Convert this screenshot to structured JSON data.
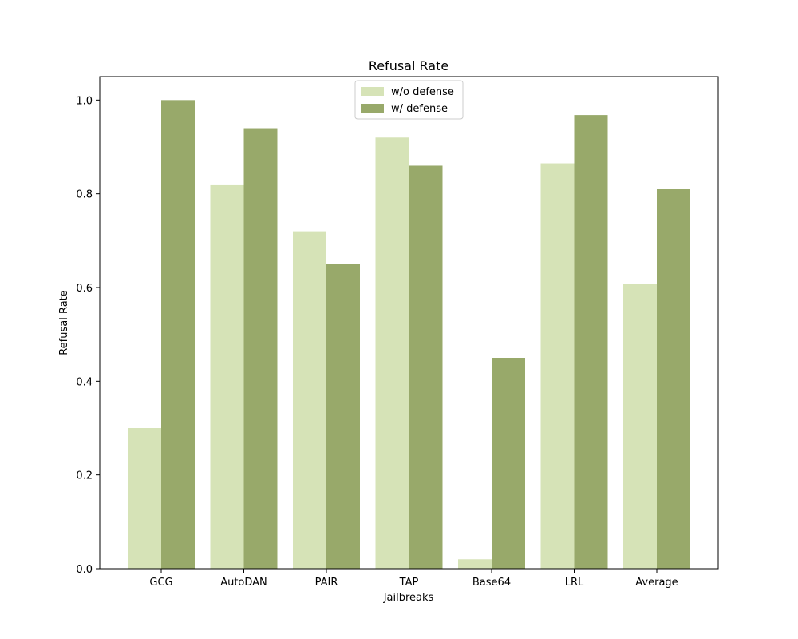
{
  "chart_data": {
    "type": "bar",
    "title": "Refusal Rate",
    "xlabel": "Jailbreaks",
    "ylabel": "Refusal Rate",
    "categories": [
      "GCG",
      "AutoDAN",
      "PAIR",
      "TAP",
      "Base64",
      "LRL",
      "Average"
    ],
    "series": [
      {
        "name": "w/o defense",
        "color": "#d6e3b7",
        "values": [
          0.3,
          0.82,
          0.72,
          0.92,
          0.02,
          0.865,
          0.607
        ]
      },
      {
        "name": "w/ defense",
        "color": "#98a96a",
        "values": [
          1.0,
          0.94,
          0.65,
          0.86,
          0.45,
          0.968,
          0.811
        ]
      }
    ],
    "ylim": [
      0,
      1.05
    ],
    "yticks": [
      "0.0",
      "0.2",
      "0.4",
      "0.6",
      "0.8",
      "1.0"
    ],
    "grid": false,
    "legend_position": "top-center"
  }
}
